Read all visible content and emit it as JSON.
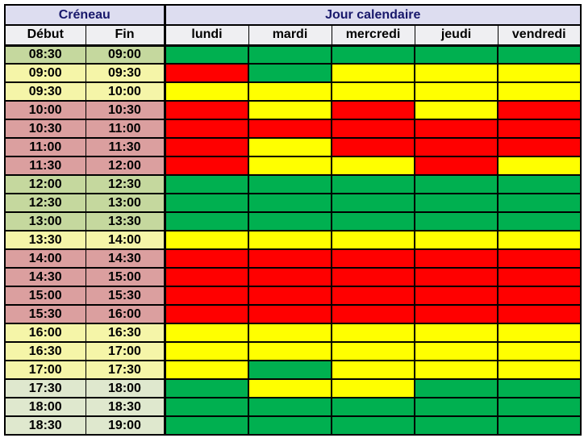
{
  "table": {
    "group_headers": [
      {
        "label": "Créneau",
        "span": 2
      },
      {
        "label": "Jour calendaire",
        "span": 5
      }
    ],
    "columns": [
      "Début",
      "Fin",
      "lundi",
      "mardi",
      "mercredi",
      "jeudi",
      "vendredi"
    ],
    "rows": [
      {
        "debut": "08:30",
        "fin": "09:00",
        "tone": "green",
        "status": [
          "green",
          "green",
          "green",
          "green",
          "green"
        ]
      },
      {
        "debut": "09:00",
        "fin": "09:30",
        "tone": "yellow",
        "status": [
          "red",
          "green",
          "yellow",
          "yellow",
          "yellow"
        ]
      },
      {
        "debut": "09:30",
        "fin": "10:00",
        "tone": "yellow",
        "status": [
          "yellow",
          "yellow",
          "yellow",
          "yellow",
          "yellow"
        ]
      },
      {
        "debut": "10:00",
        "fin": "10:30",
        "tone": "pink",
        "status": [
          "red",
          "yellow",
          "red",
          "yellow",
          "red"
        ]
      },
      {
        "debut": "10:30",
        "fin": "11:00",
        "tone": "pink",
        "status": [
          "red",
          "red",
          "red",
          "red",
          "red"
        ]
      },
      {
        "debut": "11:00",
        "fin": "11:30",
        "tone": "pink",
        "status": [
          "red",
          "yellow",
          "red",
          "red",
          "red"
        ]
      },
      {
        "debut": "11:30",
        "fin": "12:00",
        "tone": "pink",
        "status": [
          "red",
          "yellow",
          "yellow",
          "red",
          "yellow"
        ]
      },
      {
        "debut": "12:00",
        "fin": "12:30",
        "tone": "green",
        "status": [
          "green",
          "green",
          "green",
          "green",
          "green"
        ]
      },
      {
        "debut": "12:30",
        "fin": "13:00",
        "tone": "green",
        "status": [
          "green",
          "green",
          "green",
          "green",
          "green"
        ]
      },
      {
        "debut": "13:00",
        "fin": "13:30",
        "tone": "green",
        "status": [
          "green",
          "green",
          "green",
          "green",
          "green"
        ]
      },
      {
        "debut": "13:30",
        "fin": "14:00",
        "tone": "yellow",
        "status": [
          "yellow",
          "yellow",
          "yellow",
          "yellow",
          "yellow"
        ]
      },
      {
        "debut": "14:00",
        "fin": "14:30",
        "tone": "pink",
        "status": [
          "red",
          "red",
          "red",
          "red",
          "red"
        ]
      },
      {
        "debut": "14:30",
        "fin": "15:00",
        "tone": "pink",
        "status": [
          "red",
          "red",
          "red",
          "red",
          "red"
        ]
      },
      {
        "debut": "15:00",
        "fin": "15:30",
        "tone": "pink",
        "status": [
          "red",
          "red",
          "red",
          "red",
          "red"
        ]
      },
      {
        "debut": "15:30",
        "fin": "16:00",
        "tone": "pink",
        "status": [
          "red",
          "red",
          "red",
          "red",
          "red"
        ]
      },
      {
        "debut": "16:00",
        "fin": "16:30",
        "tone": "yellow",
        "status": [
          "yellow",
          "yellow",
          "yellow",
          "yellow",
          "yellow"
        ]
      },
      {
        "debut": "16:30",
        "fin": "17:00",
        "tone": "yellow",
        "status": [
          "yellow",
          "yellow",
          "yellow",
          "yellow",
          "yellow"
        ]
      },
      {
        "debut": "17:00",
        "fin": "17:30",
        "tone": "yellow",
        "status": [
          "yellow",
          "green",
          "yellow",
          "yellow",
          "yellow"
        ]
      },
      {
        "debut": "17:30",
        "fin": "18:00",
        "tone": "green_light",
        "status": [
          "green",
          "yellow",
          "yellow",
          "green",
          "green"
        ]
      },
      {
        "debut": "18:00",
        "fin": "18:30",
        "tone": "green_light",
        "status": [
          "green",
          "green",
          "green",
          "green",
          "green"
        ]
      },
      {
        "debut": "18:30",
        "fin": "19:00",
        "tone": "green_light",
        "status": [
          "green",
          "green",
          "green",
          "green",
          "green"
        ]
      }
    ]
  },
  "colors": {
    "status": {
      "green": "#00B050",
      "yellow": "#FFFF00",
      "red": "#FF0000"
    },
    "label_tones": {
      "green": "#C5D89E",
      "yellow": "#F5F5A8",
      "pink": "#DB9F9F",
      "green_light": "#DFE8CE"
    },
    "header_row1_bg": "#DDDDF0",
    "header_row1_text": "#18186B",
    "header_row2_bg": "#EFEFF2",
    "header_row2_text": "#000000",
    "grid": "#000000"
  },
  "chart_data": {
    "type": "heatmap",
    "title": "Créneau / Jour calendaire",
    "columns": [
      "lundi",
      "mardi",
      "mercredi",
      "jeudi",
      "vendredi"
    ],
    "rows": [
      "08:30-09:00",
      "09:00-09:30",
      "09:30-10:00",
      "10:00-10:30",
      "10:30-11:00",
      "11:00-11:30",
      "11:30-12:00",
      "12:00-12:30",
      "12:30-13:00",
      "13:00-13:30",
      "13:30-14:00",
      "14:00-14:30",
      "14:30-15:00",
      "15:00-15:30",
      "15:30-16:00",
      "16:00-16:30",
      "16:30-17:00",
      "17:00-17:30",
      "17:30-18:00",
      "18:00-18:30",
      "18:30-19:00"
    ],
    "values": [
      [
        "green",
        "green",
        "green",
        "green",
        "green"
      ],
      [
        "red",
        "green",
        "yellow",
        "yellow",
        "yellow"
      ],
      [
        "yellow",
        "yellow",
        "yellow",
        "yellow",
        "yellow"
      ],
      [
        "red",
        "yellow",
        "red",
        "yellow",
        "red"
      ],
      [
        "red",
        "red",
        "red",
        "red",
        "red"
      ],
      [
        "red",
        "yellow",
        "red",
        "red",
        "red"
      ],
      [
        "red",
        "yellow",
        "yellow",
        "red",
        "yellow"
      ],
      [
        "green",
        "green",
        "green",
        "green",
        "green"
      ],
      [
        "green",
        "green",
        "green",
        "green",
        "green"
      ],
      [
        "green",
        "green",
        "green",
        "green",
        "green"
      ],
      [
        "yellow",
        "yellow",
        "yellow",
        "yellow",
        "yellow"
      ],
      [
        "red",
        "red",
        "red",
        "red",
        "red"
      ],
      [
        "red",
        "red",
        "red",
        "red",
        "red"
      ],
      [
        "red",
        "red",
        "red",
        "red",
        "red"
      ],
      [
        "red",
        "red",
        "red",
        "red",
        "red"
      ],
      [
        "yellow",
        "yellow",
        "yellow",
        "yellow",
        "yellow"
      ],
      [
        "yellow",
        "yellow",
        "yellow",
        "yellow",
        "yellow"
      ],
      [
        "yellow",
        "green",
        "yellow",
        "yellow",
        "yellow"
      ],
      [
        "green",
        "yellow",
        "yellow",
        "green",
        "green"
      ],
      [
        "green",
        "green",
        "green",
        "green",
        "green"
      ],
      [
        "green",
        "green",
        "green",
        "green",
        "green"
      ]
    ],
    "legend": {
      "green": "#00B050",
      "yellow": "#FFFF00",
      "red": "#FF0000"
    }
  }
}
